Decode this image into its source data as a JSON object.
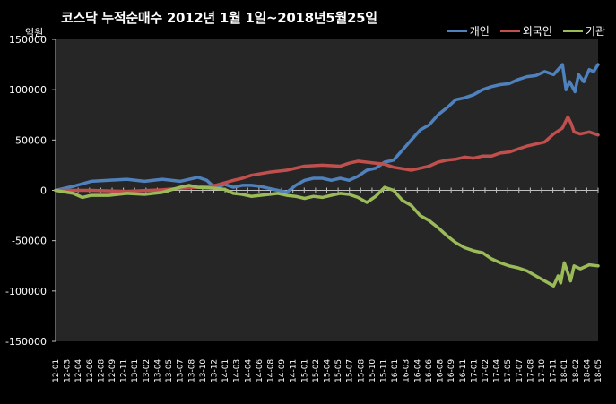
{
  "chart_data": {
    "type": "line",
    "title": "코스닥 누적순매수 2012년 1월 1일~2018년5월25일",
    "unit_label": "억원",
    "ylim": [
      -150000,
      150000
    ],
    "yticks": [
      150000,
      100000,
      50000,
      0,
      -50000,
      -100000,
      -150000
    ],
    "grid": false,
    "legend_position": "top-right",
    "background": "#262626",
    "x_labels": [
      "12-01",
      "12-03",
      "12-04",
      "12-06",
      "12-08",
      "12-09",
      "12-11",
      "13-01",
      "13-02",
      "13-04",
      "13-05",
      "13-07",
      "13-08",
      "13-10",
      "13-12",
      "14-01",
      "14-03",
      "14-04",
      "14-06",
      "14-08",
      "14-09",
      "14-11",
      "15-01",
      "15-02",
      "15-04",
      "15-05",
      "15-07",
      "15-08",
      "15-10",
      "15-11",
      "16-01",
      "16-03",
      "16-04",
      "16-06",
      "16-08",
      "16-09",
      "16-11",
      "17-01",
      "17-02",
      "17-04",
      "17-05",
      "17-07",
      "17-08",
      "17-10",
      "17-11",
      "18-01",
      "18-02",
      "18-04",
      "18-05"
    ],
    "series": [
      {
        "name": "개인",
        "color": "#4f81bd",
        "points": [
          [
            0,
            0
          ],
          [
            2,
            4000
          ],
          [
            4,
            9000
          ],
          [
            6,
            10000
          ],
          [
            8,
            11000
          ],
          [
            10,
            9000
          ],
          [
            12,
            11000
          ],
          [
            14,
            9000
          ],
          [
            16,
            13000
          ],
          [
            17,
            10000
          ],
          [
            18,
            2000
          ],
          [
            19,
            6000
          ],
          [
            20,
            3000
          ],
          [
            21,
            5000
          ],
          [
            22,
            5000
          ],
          [
            23,
            4000
          ],
          [
            24,
            2000
          ],
          [
            25,
            0
          ],
          [
            26,
            -2000
          ],
          [
            27,
            5000
          ],
          [
            28,
            10000
          ],
          [
            29,
            12000
          ],
          [
            30,
            12000
          ],
          [
            31,
            10000
          ],
          [
            32,
            12000
          ],
          [
            33,
            10000
          ],
          [
            34,
            14000
          ],
          [
            35,
            20000
          ],
          [
            36,
            22000
          ],
          [
            37,
            28000
          ],
          [
            38,
            30000
          ],
          [
            39,
            40000
          ],
          [
            40,
            50000
          ],
          [
            41,
            60000
          ],
          [
            42,
            65000
          ],
          [
            43,
            75000
          ],
          [
            44,
            82000
          ],
          [
            45,
            90000
          ],
          [
            46,
            92000
          ],
          [
            47,
            95000
          ],
          [
            48,
            100000
          ],
          [
            49,
            103000
          ],
          [
            50,
            105000
          ],
          [
            51,
            106000
          ],
          [
            52,
            110000
          ],
          [
            53,
            113000
          ],
          [
            54,
            114000
          ],
          [
            55,
            118000
          ],
          [
            56,
            115000
          ],
          [
            57,
            125000
          ],
          [
            57.4,
            100000
          ],
          [
            57.8,
            108000
          ],
          [
            58.4,
            98000
          ],
          [
            58.8,
            115000
          ],
          [
            59.4,
            108000
          ],
          [
            60,
            120000
          ],
          [
            60.5,
            118000
          ],
          [
            61,
            125000
          ]
        ]
      },
      {
        "name": "외국인",
        "color": "#c0504d",
        "points": [
          [
            0,
            0
          ],
          [
            4,
            0
          ],
          [
            8,
            -1000
          ],
          [
            12,
            500
          ],
          [
            14,
            2000
          ],
          [
            16,
            3000
          ],
          [
            18,
            5000
          ],
          [
            20,
            10000
          ],
          [
            21,
            12000
          ],
          [
            22,
            15000
          ],
          [
            24,
            18000
          ],
          [
            26,
            20000
          ],
          [
            28,
            24000
          ],
          [
            30,
            25000
          ],
          [
            32,
            24000
          ],
          [
            33,
            27000
          ],
          [
            34,
            29000
          ],
          [
            36,
            27000
          ],
          [
            37,
            26000
          ],
          [
            38,
            23000
          ],
          [
            40,
            20000
          ],
          [
            41,
            22000
          ],
          [
            42,
            24000
          ],
          [
            43,
            28000
          ],
          [
            44,
            30000
          ],
          [
            45,
            31000
          ],
          [
            46,
            33000
          ],
          [
            47,
            32000
          ],
          [
            48,
            34000
          ],
          [
            49,
            34000
          ],
          [
            50,
            37000
          ],
          [
            51,
            38000
          ],
          [
            52,
            41000
          ],
          [
            53,
            44000
          ],
          [
            54,
            46000
          ],
          [
            55,
            48000
          ],
          [
            56,
            56000
          ],
          [
            57,
            62000
          ],
          [
            57.6,
            73000
          ],
          [
            58,
            66000
          ],
          [
            58.3,
            58000
          ],
          [
            59,
            56000
          ],
          [
            60,
            58000
          ],
          [
            61,
            55000
          ]
        ]
      },
      {
        "name": "기관",
        "color": "#9bbb59",
        "points": [
          [
            0,
            0
          ],
          [
            2,
            -3000
          ],
          [
            3,
            -7000
          ],
          [
            4,
            -5000
          ],
          [
            6,
            -5000
          ],
          [
            8,
            -3000
          ],
          [
            10,
            -4000
          ],
          [
            12,
            -2000
          ],
          [
            14,
            3000
          ],
          [
            15,
            5000
          ],
          [
            16,
            3000
          ],
          [
            18,
            2000
          ],
          [
            19,
            1000
          ],
          [
            20,
            -3000
          ],
          [
            21,
            -4000
          ],
          [
            22,
            -6000
          ],
          [
            24,
            -4000
          ],
          [
            25,
            -3000
          ],
          [
            26,
            -5000
          ],
          [
            27,
            -6000
          ],
          [
            28,
            -8000
          ],
          [
            29,
            -6000
          ],
          [
            30,
            -7000
          ],
          [
            31,
            -5000
          ],
          [
            32,
            -3000
          ],
          [
            33,
            -4000
          ],
          [
            34,
            -7000
          ],
          [
            35,
            -12000
          ],
          [
            36,
            -6000
          ],
          [
            37,
            3000
          ],
          [
            38,
            0
          ],
          [
            39,
            -10000
          ],
          [
            40,
            -15000
          ],
          [
            41,
            -25000
          ],
          [
            42,
            -30000
          ],
          [
            43,
            -37000
          ],
          [
            44,
            -45000
          ],
          [
            45,
            -52000
          ],
          [
            46,
            -57000
          ],
          [
            47,
            -60000
          ],
          [
            48,
            -62000
          ],
          [
            49,
            -68000
          ],
          [
            50,
            -72000
          ],
          [
            51,
            -75000
          ],
          [
            52,
            -77000
          ],
          [
            53,
            -80000
          ],
          [
            54,
            -85000
          ],
          [
            55,
            -90000
          ],
          [
            56,
            -95000
          ],
          [
            56.5,
            -85000
          ],
          [
            56.8,
            -92000
          ],
          [
            57.2,
            -72000
          ],
          [
            57.6,
            -82000
          ],
          [
            57.9,
            -90000
          ],
          [
            58.3,
            -75000
          ],
          [
            59,
            -78000
          ],
          [
            60,
            -74000
          ],
          [
            61,
            -75000
          ]
        ]
      }
    ]
  }
}
